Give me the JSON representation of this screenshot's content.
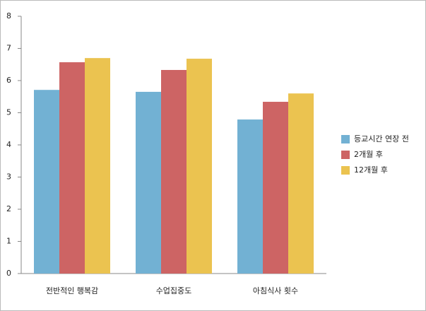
{
  "chart_data": {
    "type": "bar",
    "categories": [
      "전반적인 행복감",
      "수업집중도",
      "아침식사 횟수"
    ],
    "series": [
      {
        "name": "등교시간 연장 전",
        "color": "#72b1d3",
        "values": [
          5.71,
          5.65,
          4.79
        ]
      },
      {
        "name": "2개월 후",
        "color": "#cd6464",
        "values": [
          6.57,
          6.33,
          5.34
        ]
      },
      {
        "name": "12개월 후",
        "color": "#ebc350",
        "values": [
          6.7,
          6.68,
          5.6
        ]
      }
    ],
    "ylim": [
      0,
      8
    ],
    "yticks": [
      0,
      1,
      2,
      3,
      4,
      5,
      6,
      7,
      8
    ],
    "grid": false,
    "legend": "right"
  }
}
